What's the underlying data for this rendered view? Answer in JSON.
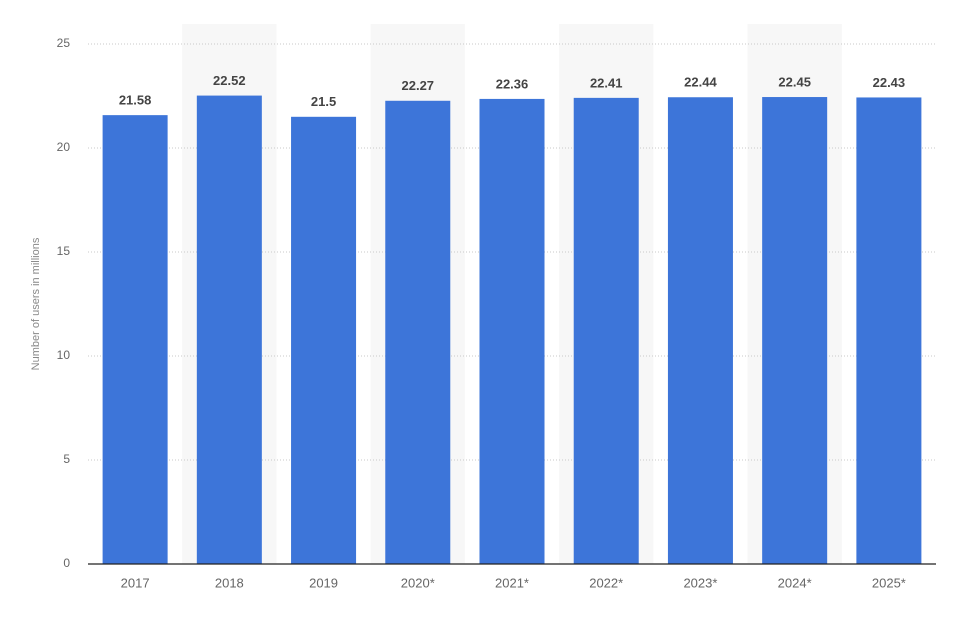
{
  "chart_data": {
    "type": "bar",
    "y_label": "Number of users in millions",
    "categories": [
      "2017",
      "2018",
      "2019",
      "2020*",
      "2021*",
      "2022*",
      "2023*",
      "2024*",
      "2025*"
    ],
    "values": [
      21.58,
      22.52,
      21.5,
      22.27,
      22.36,
      22.41,
      22.44,
      22.45,
      22.43
    ],
    "color": "#3d75d9",
    "ylim": [
      0,
      25
    ],
    "yticks": [
      0,
      5,
      10,
      15,
      20,
      25
    ],
    "grid": true
  }
}
